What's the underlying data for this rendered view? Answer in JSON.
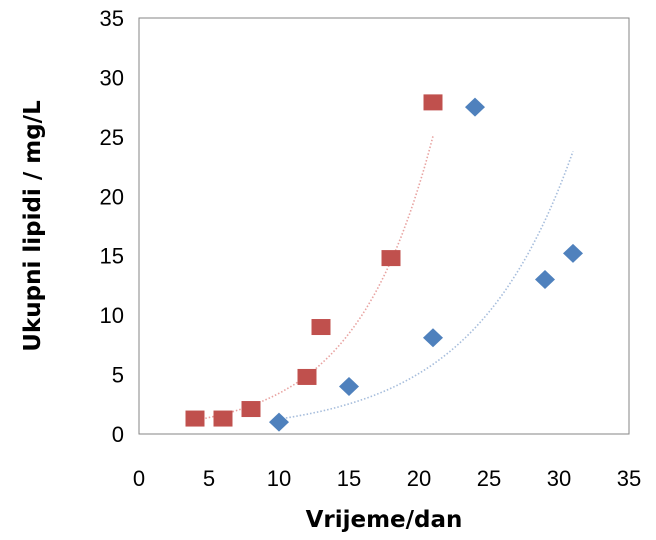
{
  "chart_data": {
    "type": "scatter",
    "xlabel": "Vrijeme/dan",
    "ylabel": "Ukupni lipidi / mg/L",
    "xlim": [
      0,
      35
    ],
    "ylim": [
      0,
      35
    ],
    "xticks": [
      0,
      5,
      10,
      15,
      20,
      25,
      30,
      35
    ],
    "yticks": [
      0,
      5,
      10,
      15,
      20,
      25,
      30,
      35
    ],
    "grid": false,
    "legend": "none",
    "series": [
      {
        "marker": "square",
        "color": "#c0504d",
        "points": [
          [
            4,
            1.3
          ],
          [
            6,
            1.3
          ],
          [
            8,
            2.1
          ],
          [
            12,
            4.8
          ],
          [
            13,
            9.0
          ],
          [
            18,
            14.8
          ],
          [
            21,
            27.9
          ]
        ],
        "trendline": {
          "type": "exponential",
          "color": "#e8a3a1",
          "x_range": [
            4,
            21
          ],
          "a": 0.56,
          "b": 0.181
        }
      },
      {
        "marker": "diamond",
        "color": "#4f81bd",
        "points": [
          [
            10,
            1.0
          ],
          [
            15,
            4.0
          ],
          [
            21,
            8.1
          ],
          [
            24,
            27.5
          ],
          [
            29,
            13.0
          ],
          [
            31,
            15.2
          ]
        ],
        "trendline": {
          "type": "exponential",
          "color": "#a6bddc",
          "x_range": [
            10,
            31
          ],
          "a": 0.31,
          "b": 0.14
        }
      }
    ]
  }
}
